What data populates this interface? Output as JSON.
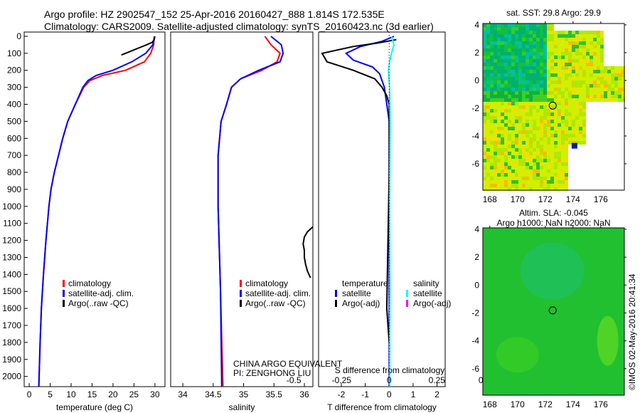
{
  "title": {
    "line1": "Argo profile: HZ 2902547_152 25-Apr-2016 20160427_888 1.814S 172.535E",
    "line2": "Climatology: CARS2009. Satellite-adjusted climatology: synTS_20160423.nc (3d earlier)"
  },
  "colors": {
    "climatology": "#ff0000",
    "satellite": "#0000ff",
    "argo": "#000000",
    "sal_satellite": "#00ffff",
    "sal_argo": "#ff00ff"
  },
  "chart_data": [
    {
      "type": "line",
      "name": "temperature",
      "xlabel": "temperature (deg C)",
      "ylabel": "depth",
      "xlim": [
        -1.2,
        32.4
      ],
      "ylim": [
        2060,
        0
      ],
      "xticks": [
        0,
        5,
        10,
        15,
        20,
        25,
        30
      ],
      "yticks": [
        0,
        100,
        200,
        300,
        400,
        500,
        600,
        700,
        800,
        900,
        1000,
        1100,
        1200,
        1300,
        1400,
        1500,
        1600,
        1700,
        1800,
        1900,
        2000
      ],
      "legend": [
        "climatology",
        "satellite-adj. clim.",
        "Argo(..raw -QC)"
      ],
      "series": [
        {
          "name": "climatology",
          "color": "#ff0000",
          "depth": [
            0,
            50,
            100,
            150,
            200,
            230,
            260,
            300,
            400,
            500,
            600,
            700,
            800,
            900,
            1000,
            1200,
            1400,
            1600,
            1800,
            2060
          ],
          "values": [
            29.8,
            29.7,
            29.0,
            27.5,
            23,
            17.5,
            14.5,
            13,
            11,
            9.2,
            8,
            7,
            6,
            5.2,
            4.7,
            4,
            3.4,
            2.9,
            2.6,
            2.3
          ]
        },
        {
          "name": "satellite-adj. clim.",
          "color": "#0000ff",
          "depth": [
            0,
            50,
            100,
            150,
            200,
            230,
            260,
            300,
            400,
            500,
            600,
            700,
            800,
            900,
            1000,
            1200,
            1400,
            1600,
            1800,
            2060
          ],
          "values": [
            30,
            29.5,
            27.8,
            24.5,
            20,
            16,
            14,
            12.8,
            11,
            9.2,
            8,
            7,
            6,
            5.2,
            4.7,
            4,
            3.4,
            2.9,
            2.6,
            2.3
          ]
        },
        {
          "name": "Argo(..raw -QC)",
          "color": "#000000",
          "depth": [
            8,
            20,
            35,
            50,
            65,
            80,
            95,
            110
          ],
          "values": [
            29.9,
            29.8,
            29.4,
            28,
            26.5,
            25,
            23.5,
            22
          ]
        }
      ]
    },
    {
      "type": "line",
      "name": "salinity",
      "xlabel": "salinity",
      "xlim": [
        33.8,
        36.14
      ],
      "ylim": [
        2060,
        0
      ],
      "xticks": [
        34,
        34.5,
        35,
        35.5,
        36
      ],
      "legend": [
        "climatology",
        "satellite-adj. clim.",
        "Argo(..raw -QC)"
      ],
      "annotations": [
        "CHINA ARGO EQUIVALENT",
        "PI: ZENGHONG LIU"
      ],
      "series": [
        {
          "name": "climatology",
          "color": "#ff0000",
          "depth": [
            0,
            50,
            100,
            150,
            200,
            250,
            300,
            400,
            500,
            700,
            1000,
            1500,
            2060
          ],
          "values": [
            35.35,
            35.45,
            35.6,
            35.55,
            35.3,
            34.95,
            34.8,
            34.72,
            34.63,
            34.58,
            34.58,
            34.62,
            34.66
          ]
        },
        {
          "name": "satellite-adj. clim.",
          "color": "#0000ff",
          "depth": [
            0,
            50,
            100,
            150,
            200,
            250,
            300,
            400,
            500,
            700,
            1000,
            1500,
            2060
          ],
          "values": [
            35.45,
            35.62,
            35.65,
            35.6,
            35.25,
            34.95,
            34.8,
            34.72,
            34.63,
            34.58,
            34.58,
            34.62,
            34.64
          ]
        },
        {
          "name": "Argo(..raw -QC)",
          "color": "#000000",
          "depth": [
            1120,
            1150,
            1180,
            1220,
            1260,
            1300,
            1340,
            1380,
            1420
          ],
          "values": [
            36.14,
            36.05,
            36.0,
            35.98,
            36.0,
            36.0,
            36.02,
            36.05,
            36.1
          ]
        }
      ]
    },
    {
      "type": "line",
      "name": "difference",
      "xlabel": "T difference from climatology",
      "x2label": "S difference from climatology",
      "xlim": [
        -2.95,
        2.34
      ],
      "ylim": [
        2060,
        0
      ],
      "xticks": [
        -2,
        -1,
        0,
        1,
        2
      ],
      "x2ticks": [
        -0.5,
        -0.25,
        0,
        0.25,
        0.5
      ],
      "legend": {
        "temperature_header": "temperature",
        "salinity_header": "salinity",
        "items": [
          "satellite",
          "Argo(-adj)",
          "satellite",
          "Argo(-adj)"
        ]
      },
      "series": [
        {
          "name": "T satellite",
          "color": "#0000ff",
          "depth": [
            0,
            30,
            60,
            100,
            140,
            180,
            220,
            300,
            400,
            500,
            800,
            1200,
            1600,
            2060
          ],
          "values": [
            0.2,
            -0.3,
            -1.2,
            -1.8,
            -1.5,
            -0.7,
            -0.4,
            -0.2,
            -0.1,
            0,
            0,
            0,
            0,
            0
          ]
        },
        {
          "name": "T Argo(-adj)",
          "color": "#000000",
          "depth": [
            20,
            40,
            60,
            100,
            150,
            200,
            250,
            300,
            350,
            400,
            500,
            800,
            1600,
            1800
          ],
          "values": [
            0.3,
            -0.5,
            -1.5,
            -2.8,
            -2.6,
            -1.5,
            -0.6,
            -0.3,
            -0.1,
            0,
            0,
            0,
            -0.1,
            0
          ]
        },
        {
          "name": "S satellite",
          "color": "#00ffff",
          "depth": [
            0,
            50,
            100,
            150,
            200,
            300,
            500,
            1000,
            1500,
            2060
          ],
          "values": [
            0.1,
            0.2,
            0.1,
            0.02,
            -0.03,
            0.02,
            0.04,
            0.02,
            0.03,
            0.02
          ]
        }
      ]
    }
  ],
  "maps": [
    {
      "title": "sat. SST: 29.8 Argo: 29.9",
      "xticks": [
        168,
        170,
        172,
        174,
        176
      ],
      "yticks": [
        4,
        2,
        0,
        -2,
        -4,
        -6
      ],
      "lonlim": [
        167.5,
        177.7
      ],
      "latlim": [
        -7.9,
        4.1
      ],
      "argo_lon": 172.535,
      "argo_lat": -1.814
    },
    {
      "title": "Altim. SLA: -0.045",
      "subtitle": "Argo h1000: NaN h2000: NaN",
      "xticks": [
        168,
        170,
        172,
        174,
        176
      ],
      "yticks": [
        4,
        2,
        0,
        -2,
        -4,
        -6
      ],
      "lonlim": [
        167.5,
        177.7
      ],
      "latlim": [
        -7.9,
        4.1
      ],
      "argo_lon": 172.535,
      "argo_lat": -1.814
    }
  ],
  "credit": "©IMOS 02-May-2016 20:41:34"
}
